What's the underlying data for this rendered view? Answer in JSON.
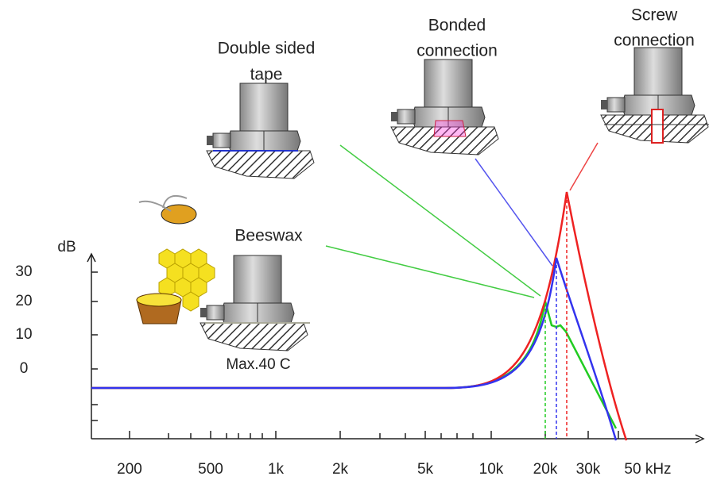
{
  "labels": {
    "tape": [
      "Double sided",
      "tape"
    ],
    "bonded": [
      "Bonded",
      "connection"
    ],
    "screw": [
      "Screw",
      "connection"
    ],
    "beeswax": "Beeswax",
    "max_temp": "Max.40 C"
  },
  "axis": {
    "y_label": "dB",
    "y_ticks": [
      "30",
      "20",
      "10",
      "0"
    ],
    "x_ticks": [
      "200",
      "500",
      "1k",
      "2k",
      "5k",
      "10k",
      "20k",
      "30k",
      "50 kHz"
    ]
  }
}
